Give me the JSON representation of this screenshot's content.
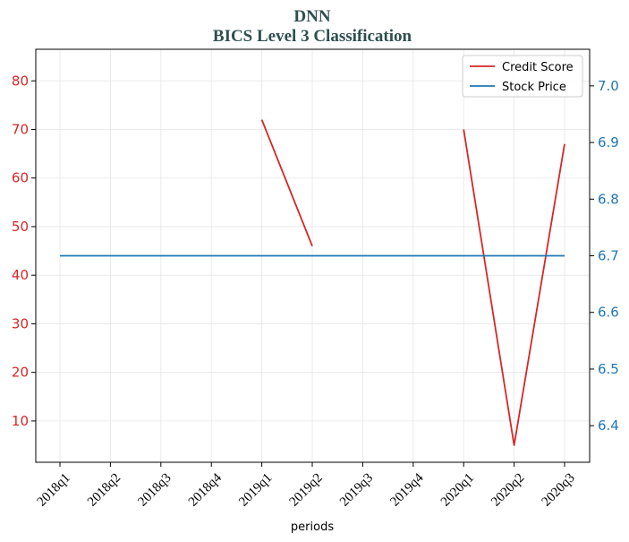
{
  "chart_data": {
    "type": "line",
    "title": "DNN",
    "subtitle": "BICS Level 3 Classification",
    "xlabel": "periods",
    "categories": [
      "2018q1",
      "2018q2",
      "2018q3",
      "2018q4",
      "2019q1",
      "2019q2",
      "2019q3",
      "2019q4",
      "2020q1",
      "2020q2",
      "2020q3"
    ],
    "y_left": {
      "ylim": [
        1.5,
        86.5
      ],
      "ticks": [
        10,
        20,
        30,
        40,
        50,
        60,
        70,
        80
      ]
    },
    "y_right": {
      "ylim": [
        6.3354,
        7.0646
      ],
      "ticks": [
        6.4,
        6.5,
        6.6,
        6.7,
        6.8,
        6.9,
        7.0
      ],
      "tick_labels": [
        "6.4",
        "6.5",
        "6.6",
        "6.7",
        "6.8",
        "6.9",
        "7.0"
      ]
    },
    "series": [
      {
        "name": "Credit Score",
        "axis": "left",
        "color": "#d62728",
        "values": [
          null,
          null,
          null,
          null,
          72,
          46,
          null,
          null,
          70,
          5,
          67
        ]
      },
      {
        "name": "Stock Price",
        "axis": "right",
        "color": "#1f77b4",
        "values": [
          6.7,
          6.7,
          6.7,
          6.7,
          6.7,
          6.7,
          6.7,
          6.7,
          6.7,
          6.7,
          6.7
        ]
      }
    ],
    "grid": true,
    "legend": "top-right",
    "colors": {
      "title": "#2f4f4f",
      "left_axis": "#d62728",
      "right_axis": "#1f77b4"
    }
  }
}
